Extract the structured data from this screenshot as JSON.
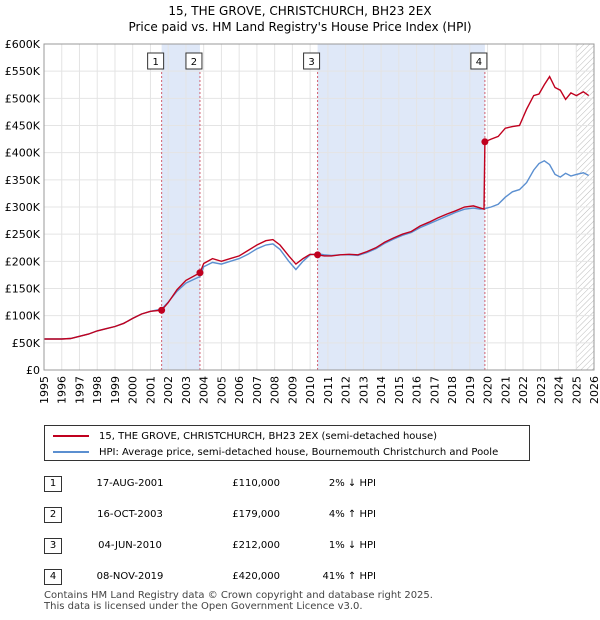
{
  "title_line1": "15, THE GROVE, CHRISTCHURCH, BH23 2EX",
  "title_line2": "Price paid vs. HM Land Registry's House Price Index (HPI)",
  "colors": {
    "price_line": "#c0001e",
    "hpi_line": "#5b8fd0",
    "shade": "#dfe8f8",
    "vline": "#d06070"
  },
  "chart_data": {
    "type": "line",
    "xlim": [
      1995,
      2026
    ],
    "ylim": [
      0,
      600000
    ],
    "x_ticks": [
      1995,
      1996,
      1997,
      1998,
      1999,
      2000,
      2001,
      2002,
      2003,
      2004,
      2005,
      2006,
      2007,
      2008,
      2009,
      2010,
      2011,
      2012,
      2013,
      2014,
      2015,
      2016,
      2017,
      2018,
      2019,
      2020,
      2021,
      2022,
      2023,
      2024,
      2025,
      2026
    ],
    "y_ticks": [
      {
        "value": 0,
        "label": "£0"
      },
      {
        "value": 50000,
        "label": "£50K"
      },
      {
        "value": 100000,
        "label": "£100K"
      },
      {
        "value": 150000,
        "label": "£150K"
      },
      {
        "value": 200000,
        "label": "£200K"
      },
      {
        "value": 250000,
        "label": "£250K"
      },
      {
        "value": 300000,
        "label": "£300K"
      },
      {
        "value": 350000,
        "label": "£350K"
      },
      {
        "value": 400000,
        "label": "£400K"
      },
      {
        "value": 450000,
        "label": "£450K"
      },
      {
        "value": 500000,
        "label": "£500K"
      },
      {
        "value": 550000,
        "label": "£550K"
      },
      {
        "value": 600000,
        "label": "£600K"
      }
    ],
    "shaded_ranges": [
      [
        2001.63,
        2003.79
      ],
      [
        2010.42,
        2019.85
      ]
    ],
    "hatched_from": 2025.0,
    "sale_markers": [
      {
        "label": "1",
        "x": 2001.63,
        "y": 110000
      },
      {
        "label": "2",
        "x": 2003.79,
        "y": 179000
      },
      {
        "label": "3",
        "x": 2010.42,
        "y": 212000
      },
      {
        "label": "4",
        "x": 2019.85,
        "y": 420000
      }
    ],
    "series": [
      {
        "name": "15, THE GROVE, CHRISTCHURCH, BH23 2EX (semi-detached house)",
        "color": "#c0001e",
        "x": [
          1995.0,
          1995.5,
          1996.0,
          1996.5,
          1997.0,
          1997.5,
          1998.0,
          1998.5,
          1999.0,
          1999.5,
          2000.0,
          2000.5,
          2001.0,
          2001.63,
          2002.0,
          2002.5,
          2003.0,
          2003.79,
          2004.0,
          2004.5,
          2005.0,
          2005.5,
          2006.0,
          2006.5,
          2007.0,
          2007.5,
          2007.9,
          2008.3,
          2008.8,
          2009.2,
          2009.6,
          2010.0,
          2010.42,
          2010.8,
          2011.2,
          2011.7,
          2012.2,
          2012.7,
          2013.2,
          2013.7,
          2014.2,
          2014.7,
          2015.2,
          2015.7,
          2016.2,
          2016.7,
          2017.2,
          2017.7,
          2018.2,
          2018.7,
          2019.2,
          2019.6,
          2019.8,
          2019.85,
          2020.2,
          2020.6,
          2021.0,
          2021.4,
          2021.8,
          2022.2,
          2022.6,
          2022.9,
          2023.2,
          2023.5,
          2023.8,
          2024.1,
          2024.4,
          2024.7,
          2025.0,
          2025.4,
          2025.7
        ],
        "y": [
          57000,
          57000,
          57000,
          58000,
          62000,
          66000,
          72000,
          76000,
          80000,
          86000,
          95000,
          103000,
          108000,
          110000,
          124000,
          148000,
          165000,
          179000,
          196000,
          205000,
          200000,
          205000,
          210000,
          220000,
          230000,
          238000,
          240000,
          230000,
          210000,
          195000,
          205000,
          213000,
          212000,
          210000,
          210000,
          212000,
          213000,
          212000,
          218000,
          225000,
          235000,
          243000,
          250000,
          255000,
          265000,
          272000,
          280000,
          287000,
          293000,
          300000,
          302000,
          298000,
          296000,
          420000,
          425000,
          430000,
          445000,
          448000,
          450000,
          480000,
          505000,
          508000,
          525000,
          540000,
          520000,
          515000,
          498000,
          510000,
          505000,
          512000,
          505000
        ]
      },
      {
        "name": "HPI: Average price, semi-detached house, Bournemouth Christchurch and Poole",
        "color": "#5b8fd0",
        "x": [
          1995.0,
          1995.5,
          1996.0,
          1996.5,
          1997.0,
          1997.5,
          1998.0,
          1998.5,
          1999.0,
          1999.5,
          2000.0,
          2000.5,
          2001.0,
          2001.63,
          2002.0,
          2002.5,
          2003.0,
          2003.79,
          2004.0,
          2004.5,
          2005.0,
          2005.5,
          2006.0,
          2006.5,
          2007.0,
          2007.5,
          2007.9,
          2008.3,
          2008.8,
          2009.2,
          2009.6,
          2010.0,
          2010.42,
          2010.8,
          2011.2,
          2011.7,
          2012.2,
          2012.7,
          2013.2,
          2013.7,
          2014.2,
          2014.7,
          2015.2,
          2015.7,
          2016.2,
          2016.7,
          2017.2,
          2017.7,
          2018.2,
          2018.7,
          2019.2,
          2019.6,
          2019.85,
          2020.2,
          2020.6,
          2021.0,
          2021.4,
          2021.8,
          2022.2,
          2022.6,
          2022.9,
          2023.2,
          2023.5,
          2023.8,
          2024.1,
          2024.4,
          2024.7,
          2025.0,
          2025.4,
          2025.7
        ],
        "y": [
          57000,
          57000,
          57000,
          58000,
          62000,
          66000,
          72000,
          76000,
          80000,
          86000,
          95000,
          103000,
          108000,
          112000,
          125000,
          145000,
          160000,
          172000,
          190000,
          198000,
          195000,
          200000,
          205000,
          213000,
          223000,
          230000,
          232000,
          222000,
          200000,
          185000,
          200000,
          212000,
          214000,
          212000,
          211000,
          212000,
          212000,
          211000,
          216000,
          223000,
          233000,
          241000,
          248000,
          253000,
          262000,
          269000,
          276000,
          283000,
          290000,
          296000,
          298000,
          296000,
          297000,
          300000,
          305000,
          318000,
          328000,
          332000,
          345000,
          368000,
          380000,
          385000,
          378000,
          360000,
          355000,
          362000,
          357000,
          360000,
          363000,
          358000
        ]
      }
    ]
  },
  "legend": {
    "price_label": "15, THE GROVE, CHRISTCHURCH, BH23 2EX (semi-detached house)",
    "hpi_label": "HPI: Average price, semi-detached house, Bournemouth Christchurch and Poole"
  },
  "sales": [
    {
      "num": "1",
      "date": "17-AUG-2001",
      "price": "£110,000",
      "hpi": "2% ↓ HPI"
    },
    {
      "num": "2",
      "date": "16-OCT-2003",
      "price": "£179,000",
      "hpi": "4% ↑ HPI"
    },
    {
      "num": "3",
      "date": "04-JUN-2010",
      "price": "£212,000",
      "hpi": "1% ↓ HPI"
    },
    {
      "num": "4",
      "date": "08-NOV-2019",
      "price": "£420,000",
      "hpi": "41% ↑ HPI"
    }
  ],
  "footer": {
    "line1": "Contains HM Land Registry data © Crown copyright and database right 2025.",
    "line2": "This data is licensed under the Open Government Licence v3.0."
  }
}
